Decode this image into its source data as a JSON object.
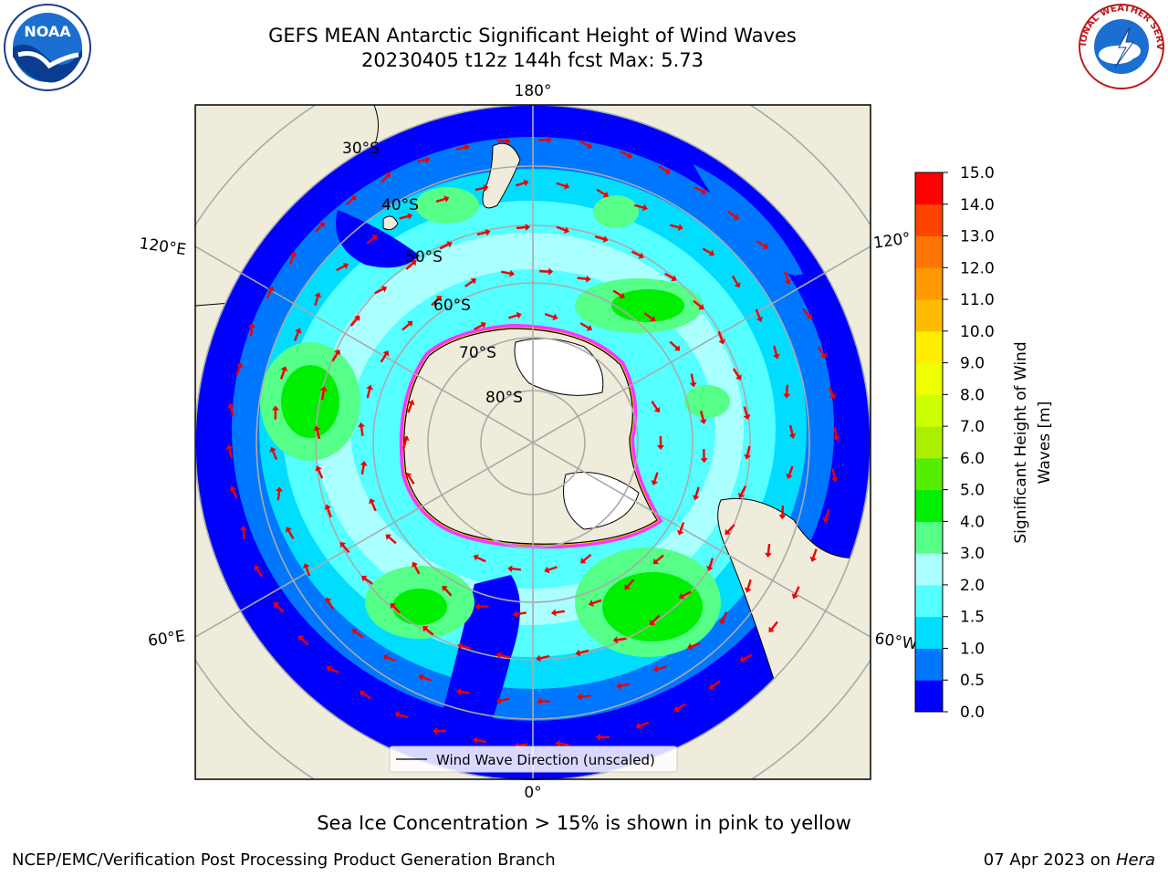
{
  "header": {
    "title_line1": "GEFS MEAN Antarctic Significant Height of Wind Waves",
    "title_line2": "20230405 t12z 144h fcst   Max: 5.73"
  },
  "logos": {
    "left": "noaa-logo",
    "left_text": "NOAA",
    "right": "national-weather-service-logo",
    "right_text": "NATIONAL WEATHER SERVICE"
  },
  "map": {
    "projection": "south-polar-stereographic",
    "longitude_labels": [
      "180°",
      "120°E",
      "120°",
      "60°E",
      "60°W",
      "0°"
    ],
    "latitude_labels": [
      "30°S",
      "40°S",
      "50°S",
      "60°S",
      "70°S",
      "80°S"
    ],
    "legend_label": "Wind Wave Direction (unscaled)",
    "note": "Sea Ice Concentration > 15% is shown in pink to yellow",
    "colors": {
      "land": "#efecdc",
      "ice_shelf": "#ffffff",
      "sea_ice_edge": [
        "#ff33ff",
        "#ffcc00"
      ],
      "arrow": "#ee0000"
    }
  },
  "colorbar": {
    "label_line1": "Significant Height of Wind",
    "label_line2": "Waves [m]",
    "ticks": [
      "0.0",
      "0.5",
      "1.0",
      "1.5",
      "2.0",
      "3.0",
      "4.0",
      "5.0",
      "6.0",
      "7.0",
      "8.0",
      "9.0",
      "10.0",
      "11.0",
      "12.0",
      "13.0",
      "14.0",
      "15.0"
    ],
    "colors": [
      "#0000ff",
      "#0077ff",
      "#00ddff",
      "#55ffff",
      "#aaffff",
      "#55ff88",
      "#00ee00",
      "#55ee00",
      "#aaee00",
      "#ccff00",
      "#eeff00",
      "#ffee00",
      "#ffbb00",
      "#ff9900",
      "#ff7700",
      "#ff4400",
      "#ff0000"
    ]
  },
  "footer": {
    "left": "NCEP/EMC/Verification Post Processing Product Generation Branch",
    "right_date": "07 Apr 2023 on ",
    "right_host": "Hera"
  }
}
